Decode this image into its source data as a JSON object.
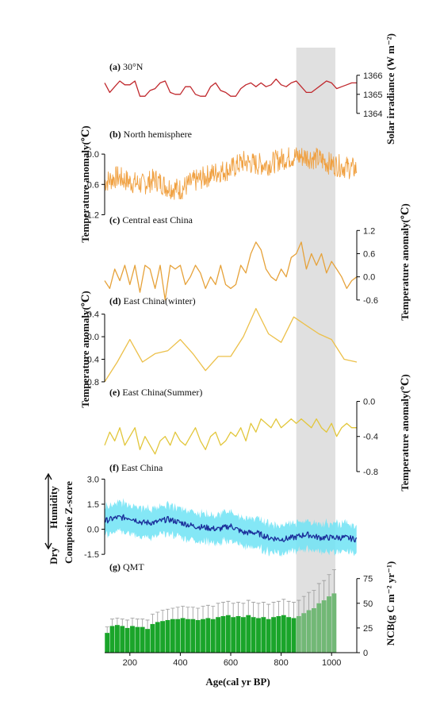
{
  "figure": {
    "x_axis": {
      "label": "Age(cal yr BP)",
      "range": [
        100,
        1100
      ],
      "ticks": [
        200,
        400,
        600,
        800,
        1000
      ]
    },
    "shaded_interval": [
      860,
      1015
    ],
    "right_labels": {
      "solar": "Solar irradiance (W m⁻²)",
      "temp_c": "Temperature anomaly(℃)",
      "temp_e": "Temperature anomaly(℃)",
      "ncb": "NCB(g C m⁻² yr⁻¹)"
    },
    "left_labels": {
      "temp_b": "Temperature anomaly(℃)",
      "temp_d": "Temperature anomaly(℃)",
      "zscore": "Composite Z-score",
      "humidity": "Humidity",
      "dry": "Dry"
    }
  },
  "chart_data": [
    {
      "id": "a",
      "type": "line",
      "title_letter": "(a)",
      "title_text": "30°N",
      "axis_side": "right",
      "ylim": [
        1363.7,
        1366.2
      ],
      "ticks": [
        1364,
        1365,
        1366
      ],
      "color": "#c0282d",
      "x": [
        100,
        120,
        140,
        160,
        180,
        200,
        220,
        240,
        260,
        280,
        300,
        320,
        340,
        360,
        380,
        400,
        420,
        440,
        460,
        480,
        500,
        520,
        540,
        560,
        580,
        600,
        620,
        640,
        660,
        680,
        700,
        720,
        740,
        760,
        780,
        800,
        820,
        840,
        860,
        880,
        900,
        920,
        940,
        960,
        980,
        1000,
        1020,
        1040,
        1060,
        1080,
        1100
      ],
      "y": [
        1365.6,
        1365.1,
        1365.4,
        1365.7,
        1365.5,
        1365.5,
        1365.7,
        1364.9,
        1364.9,
        1365.2,
        1365.3,
        1365.6,
        1365.7,
        1365.1,
        1365.0,
        1365.0,
        1365.4,
        1365.4,
        1365.0,
        1364.9,
        1364.9,
        1365.4,
        1365.6,
        1365.2,
        1365.1,
        1364.9,
        1364.9,
        1365.3,
        1365.5,
        1365.6,
        1365.4,
        1365.6,
        1365.4,
        1365.5,
        1365.8,
        1365.5,
        1365.4,
        1365.6,
        1365.7,
        1365.4,
        1365.1,
        1365.1,
        1365.3,
        1365.5,
        1365.7,
        1365.6,
        1365.3,
        1365.4,
        1365.5,
        1365.6,
        1365.6
      ]
    },
    {
      "id": "b",
      "type": "line",
      "title_letter": "(b)",
      "title_text": "North hemisphere",
      "axis_side": "left",
      "ylim": [
        -1.35,
        0.3
      ],
      "ticks": [
        -1.2,
        -0.6,
        0.0
      ],
      "tick_labels": [
        "-1.2",
        "-0.6",
        "0.0"
      ],
      "color": "#f0a040",
      "noisy": true,
      "x": [
        100,
        150,
        200,
        250,
        300,
        350,
        400,
        450,
        500,
        550,
        600,
        650,
        700,
        750,
        800,
        850,
        900,
        950,
        1000,
        1050,
        1100
      ],
      "y": [
        -0.55,
        -0.45,
        -0.55,
        -0.6,
        -0.5,
        -0.65,
        -0.7,
        -0.55,
        -0.45,
        -0.35,
        -0.3,
        -0.15,
        -0.2,
        -0.2,
        -0.1,
        -0.05,
        -0.05,
        -0.1,
        -0.2,
        -0.25,
        -0.3
      ]
    },
    {
      "id": "c",
      "type": "line",
      "title_letter": "(c)",
      "title_text": "Central east China",
      "axis_side": "right",
      "ylim": [
        -0.85,
        1.35
      ],
      "ticks": [
        -0.6,
        0.0,
        0.6,
        1.2
      ],
      "tick_labels": [
        "-0.6",
        "0.0",
        "0.6",
        "1.2"
      ],
      "color": "#e6a23a",
      "x": [
        100,
        120,
        140,
        160,
        180,
        200,
        220,
        240,
        260,
        280,
        300,
        320,
        340,
        360,
        380,
        400,
        420,
        440,
        460,
        480,
        500,
        520,
        540,
        560,
        580,
        600,
        620,
        640,
        660,
        680,
        700,
        720,
        740,
        760,
        780,
        800,
        820,
        840,
        860,
        880,
        900,
        920,
        940,
        960,
        980,
        1000,
        1020,
        1040,
        1060,
        1080,
        1100
      ],
      "y": [
        -0.1,
        -0.3,
        0.2,
        -0.1,
        0.3,
        -0.2,
        0.3,
        -0.4,
        0.3,
        0.2,
        -0.3,
        0.3,
        -0.6,
        0.3,
        0.2,
        0.3,
        -0.2,
        0.0,
        0.3,
        0.1,
        -0.3,
        0.0,
        -0.2,
        0.3,
        -0.2,
        -0.3,
        -0.2,
        0.3,
        0.1,
        0.6,
        0.9,
        0.7,
        0.2,
        0.0,
        -0.1,
        0.2,
        0.0,
        0.5,
        0.6,
        0.9,
        0.2,
        0.6,
        0.3,
        0.6,
        0.1,
        0.4,
        0.2,
        0.0,
        -0.3,
        -0.1,
        0.0
      ]
    },
    {
      "id": "d",
      "type": "line",
      "title_letter": "(d)",
      "title_text": "East China(winter)",
      "axis_side": "left",
      "ylim": [
        -0.9,
        0.55
      ],
      "ticks": [
        -0.8,
        -0.4,
        0.0,
        0.4
      ],
      "tick_labels": [
        "-0.8",
        "-0.4",
        "0.0",
        "0.4"
      ],
      "color": "#ecc04a",
      "x": [
        100,
        150,
        200,
        250,
        300,
        350,
        400,
        450,
        500,
        550,
        600,
        650,
        700,
        750,
        800,
        850,
        900,
        950,
        1000,
        1050,
        1100
      ],
      "y": [
        -0.8,
        -0.45,
        -0.05,
        -0.45,
        -0.3,
        -0.25,
        -0.05,
        -0.3,
        -0.6,
        -0.35,
        -0.35,
        0.0,
        0.5,
        0.05,
        -0.1,
        0.35,
        0.2,
        0.05,
        -0.05,
        -0.4,
        -0.45
      ]
    },
    {
      "id": "e",
      "type": "line",
      "title_letter": "(e)",
      "title_text": "East China(Summer)",
      "axis_side": "right",
      "ylim": [
        -0.9,
        0.05
      ],
      "ticks": [
        -0.8,
        -0.4,
        0.0
      ],
      "tick_labels": [
        "-0.8",
        "-0.4",
        "0.0"
      ],
      "color": "#e2c63a",
      "x": [
        100,
        120,
        140,
        160,
        180,
        200,
        220,
        240,
        260,
        280,
        300,
        320,
        340,
        360,
        380,
        400,
        420,
        440,
        460,
        480,
        500,
        520,
        540,
        560,
        580,
        600,
        620,
        640,
        660,
        680,
        700,
        720,
        740,
        760,
        780,
        800,
        820,
        840,
        860,
        880,
        900,
        920,
        940,
        960,
        980,
        1000,
        1020,
        1040,
        1060,
        1080,
        1100
      ],
      "y": [
        -0.5,
        -0.35,
        -0.45,
        -0.3,
        -0.5,
        -0.4,
        -0.3,
        -0.55,
        -0.4,
        -0.5,
        -0.6,
        -0.45,
        -0.4,
        -0.5,
        -0.35,
        -0.45,
        -0.5,
        -0.4,
        -0.3,
        -0.45,
        -0.55,
        -0.4,
        -0.35,
        -0.5,
        -0.45,
        -0.35,
        -0.4,
        -0.3,
        -0.45,
        -0.25,
        -0.35,
        -0.2,
        -0.25,
        -0.3,
        -0.2,
        -0.3,
        -0.25,
        -0.2,
        -0.25,
        -0.2,
        -0.25,
        -0.3,
        -0.2,
        -0.3,
        -0.35,
        -0.25,
        -0.4,
        -0.3,
        -0.25,
        -0.3,
        -0.3
      ]
    },
    {
      "id": "f",
      "type": "area",
      "title_letter": "(f)",
      "title_text": "East China",
      "axis_side": "left",
      "ylim": [
        -2.3,
        3.4
      ],
      "ticks": [
        -1.5,
        0.0,
        1.5,
        3.0
      ],
      "tick_labels": [
        "-1.5",
        "0.0",
        "1.5",
        "3.0"
      ],
      "color": "#1a2e9a",
      "band_color": "#6fe3f5",
      "x": [
        100,
        150,
        200,
        250,
        300,
        350,
        400,
        450,
        500,
        550,
        600,
        650,
        700,
        750,
        800,
        850,
        900,
        950,
        1000,
        1050,
        1100
      ],
      "y": [
        0.5,
        0.7,
        0.7,
        0.4,
        0.4,
        0.6,
        0.4,
        0.2,
        0.1,
        0.0,
        0.2,
        -0.2,
        -0.2,
        -0.5,
        -0.6,
        -0.5,
        -0.3,
        -0.5,
        -0.5,
        -0.5,
        -0.6
      ],
      "band": 0.85
    },
    {
      "id": "g",
      "type": "bar",
      "title_letter": "(g)",
      "title_text": "QMT",
      "axis_side": "right",
      "ylim": [
        0,
        82
      ],
      "ticks": [
        0,
        25,
        50,
        75
      ],
      "color": "#1aa52a",
      "highlight_color": "#72b876",
      "x": [
        110,
        130,
        150,
        170,
        190,
        210,
        230,
        250,
        270,
        290,
        310,
        330,
        350,
        370,
        390,
        410,
        430,
        450,
        470,
        490,
        510,
        530,
        550,
        570,
        590,
        610,
        630,
        650,
        670,
        690,
        710,
        730,
        750,
        770,
        790,
        810,
        830,
        850,
        870,
        890,
        910,
        930,
        950,
        970,
        990,
        1010
      ],
      "y": [
        20,
        27,
        28,
        27,
        25,
        27,
        26,
        26,
        24,
        29,
        31,
        32,
        33,
        34,
        34,
        35,
        34,
        34,
        33,
        34,
        35,
        34,
        36,
        37,
        38,
        36,
        37,
        36,
        38,
        36,
        35,
        36,
        34,
        36,
        37,
        38,
        36,
        35,
        37,
        40,
        43,
        45,
        50,
        53,
        57,
        60
      ],
      "err": [
        6,
        7,
        7,
        7,
        8,
        8,
        8,
        8,
        9,
        10,
        10,
        11,
        11,
        11,
        12,
        12,
        12,
        12,
        12,
        13,
        13,
        13,
        14,
        14,
        14,
        14,
        14,
        14,
        15,
        15,
        15,
        15,
        15,
        15,
        15,
        16,
        16,
        16,
        16,
        17,
        18,
        18,
        20,
        20,
        22,
        24
      ]
    }
  ]
}
